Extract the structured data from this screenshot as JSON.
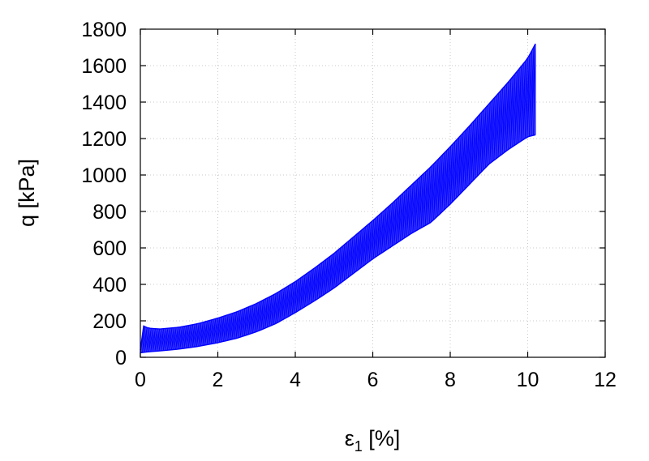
{
  "chart_data": {
    "type": "line",
    "xlabel": "ε",
    "xlabel_subscript": "1",
    "xlabel_unit": " [%]",
    "ylabel": "q [kPa]",
    "xlim": [
      0,
      12
    ],
    "ylim": [
      0,
      1800
    ],
    "xticks": [
      0,
      2,
      4,
      6,
      8,
      10,
      12
    ],
    "yticks": [
      0,
      200,
      400,
      600,
      800,
      1000,
      1200,
      1400,
      1600,
      1800
    ],
    "grid": true,
    "legend": "none",
    "series": [
      {
        "color": "#0000ff",
        "style": "cyclic loading loops between upper and lower envelope",
        "cycles": 190,
        "upper_envelope": {
          "x": [
            0.0,
            0.05,
            0.2,
            0.5,
            1.0,
            1.5,
            2.0,
            2.5,
            3.0,
            3.5,
            4.0,
            4.5,
            5.0,
            5.5,
            6.0,
            6.5,
            7.0,
            7.5,
            8.0,
            8.5,
            9.0,
            9.5,
            10.0,
            10.2
          ],
          "y": [
            40,
            175,
            160,
            155,
            165,
            185,
            215,
            250,
            295,
            350,
            415,
            490,
            570,
            660,
            750,
            845,
            945,
            1045,
            1155,
            1270,
            1390,
            1510,
            1640,
            1720
          ]
        },
        "lower_envelope": {
          "x": [
            0.0,
            0.2,
            0.5,
            1.0,
            1.5,
            2.0,
            2.5,
            3.0,
            3.5,
            4.0,
            4.5,
            5.0,
            5.5,
            6.0,
            6.5,
            7.0,
            7.5,
            8.0,
            8.5,
            9.0,
            9.5,
            10.0,
            10.2
          ],
          "y": [
            25,
            30,
            35,
            45,
            60,
            80,
            105,
            140,
            185,
            245,
            310,
            380,
            460,
            540,
            610,
            680,
            740,
            840,
            950,
            1060,
            1140,
            1210,
            1220
          ]
        }
      }
    ]
  }
}
